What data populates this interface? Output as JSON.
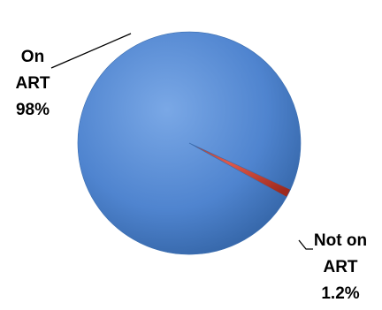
{
  "chart_data": {
    "type": "pie",
    "title": "",
    "slices": [
      {
        "name": "On ART",
        "value": 98,
        "label_line1": "On",
        "label_line2": "ART",
        "label_value": "98%",
        "color": "#4a7ebb"
      },
      {
        "name": "Not on ART",
        "value": 1.2,
        "label_line1": "Not on",
        "label_line2": "ART",
        "label_value": "1.2%",
        "color": "#c0392b"
      }
    ],
    "legend": "none"
  }
}
